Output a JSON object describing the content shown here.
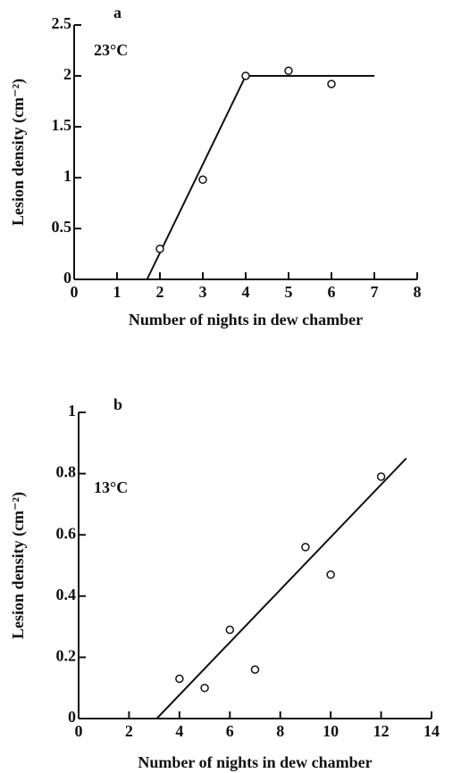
{
  "chart_data": [
    {
      "type": "scatter",
      "panel_label": "a",
      "annotation": "23°C",
      "x_label": "Number of nights in dew chamber",
      "y_label": "Lesion density (cm⁻²)",
      "xlim": [
        0,
        8
      ],
      "xticks": [
        0,
        1,
        2,
        3,
        4,
        5,
        6,
        7,
        8
      ],
      "ylim": [
        0,
        2.5
      ],
      "yticks": [
        0,
        0.5,
        1,
        1.5,
        2,
        2.5
      ],
      "x": [
        2,
        3,
        4,
        5,
        6
      ],
      "values": [
        0.3,
        0.98,
        2.0,
        2.05,
        1.92
      ],
      "fit": {
        "x": [
          1.7,
          4,
          7
        ],
        "y": [
          0,
          2,
          2
        ]
      },
      "color": "#111111"
    },
    {
      "type": "scatter",
      "panel_label": "b",
      "annotation": "13°C",
      "x_label": "Number of nights in dew chamber",
      "y_label": "Lesion density (cm⁻²)",
      "xlim": [
        0,
        14
      ],
      "xticks": [
        0,
        2,
        4,
        6,
        8,
        10,
        12,
        14
      ],
      "ylim": [
        0,
        1
      ],
      "yticks": [
        0,
        0.2,
        0.4,
        0.6,
        0.8,
        1
      ],
      "x": [
        4,
        5,
        6,
        7,
        9,
        10,
        12
      ],
      "values": [
        0.13,
        0.1,
        0.29,
        0.16,
        0.56,
        0.47,
        0.79
      ],
      "fit": {
        "x": [
          3.1,
          13
        ],
        "y": [
          0,
          0.85
        ]
      },
      "color": "#111111"
    }
  ]
}
